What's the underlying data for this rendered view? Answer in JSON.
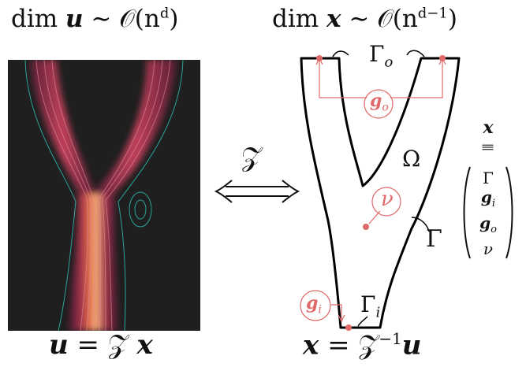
{
  "left_title": {
    "prefix": "dim ",
    "var": "u",
    "rel": " ∼ ",
    "order": "𝒪",
    "paren_open": "(n",
    "exp": "d",
    "paren_close": ")"
  },
  "right_title": {
    "prefix": "dim ",
    "var": "x",
    "rel": " ∼ ",
    "order": "𝒪",
    "paren_open": "(n",
    "exp": "d−1",
    "paren_close": ")"
  },
  "left_caption": {
    "lhs": "u",
    "eq": " = 𝒵 ",
    "rhs": "x"
  },
  "right_caption": {
    "lhs": "x",
    "eq": " = 𝒵",
    "exp": "−1",
    "rhs": "u"
  },
  "map_symbol": "𝒵",
  "labels": {
    "gamma_o": "Γ",
    "gamma_o_sub": "o",
    "omega": "Ω",
    "gamma": "Γ",
    "gamma_i": "Γ",
    "gamma_i_sub": "i",
    "g_o": "g",
    "g_o_sub": "o",
    "g_i": "g",
    "g_i_sub": "i",
    "nu": "ν"
  },
  "vector": {
    "top": "x",
    "equiv": "|||",
    "entries": [
      {
        "main": "Γ",
        "sub": ""
      },
      {
        "main": "g",
        "sub": "i"
      },
      {
        "main": "g",
        "sub": "o"
      },
      {
        "main": "ν",
        "sub": ""
      }
    ]
  },
  "colors": {
    "accent": "#e06a6a",
    "outline": "#000000",
    "field_bg": "#1f1f1f",
    "streamline": "#2ec4b6"
  }
}
